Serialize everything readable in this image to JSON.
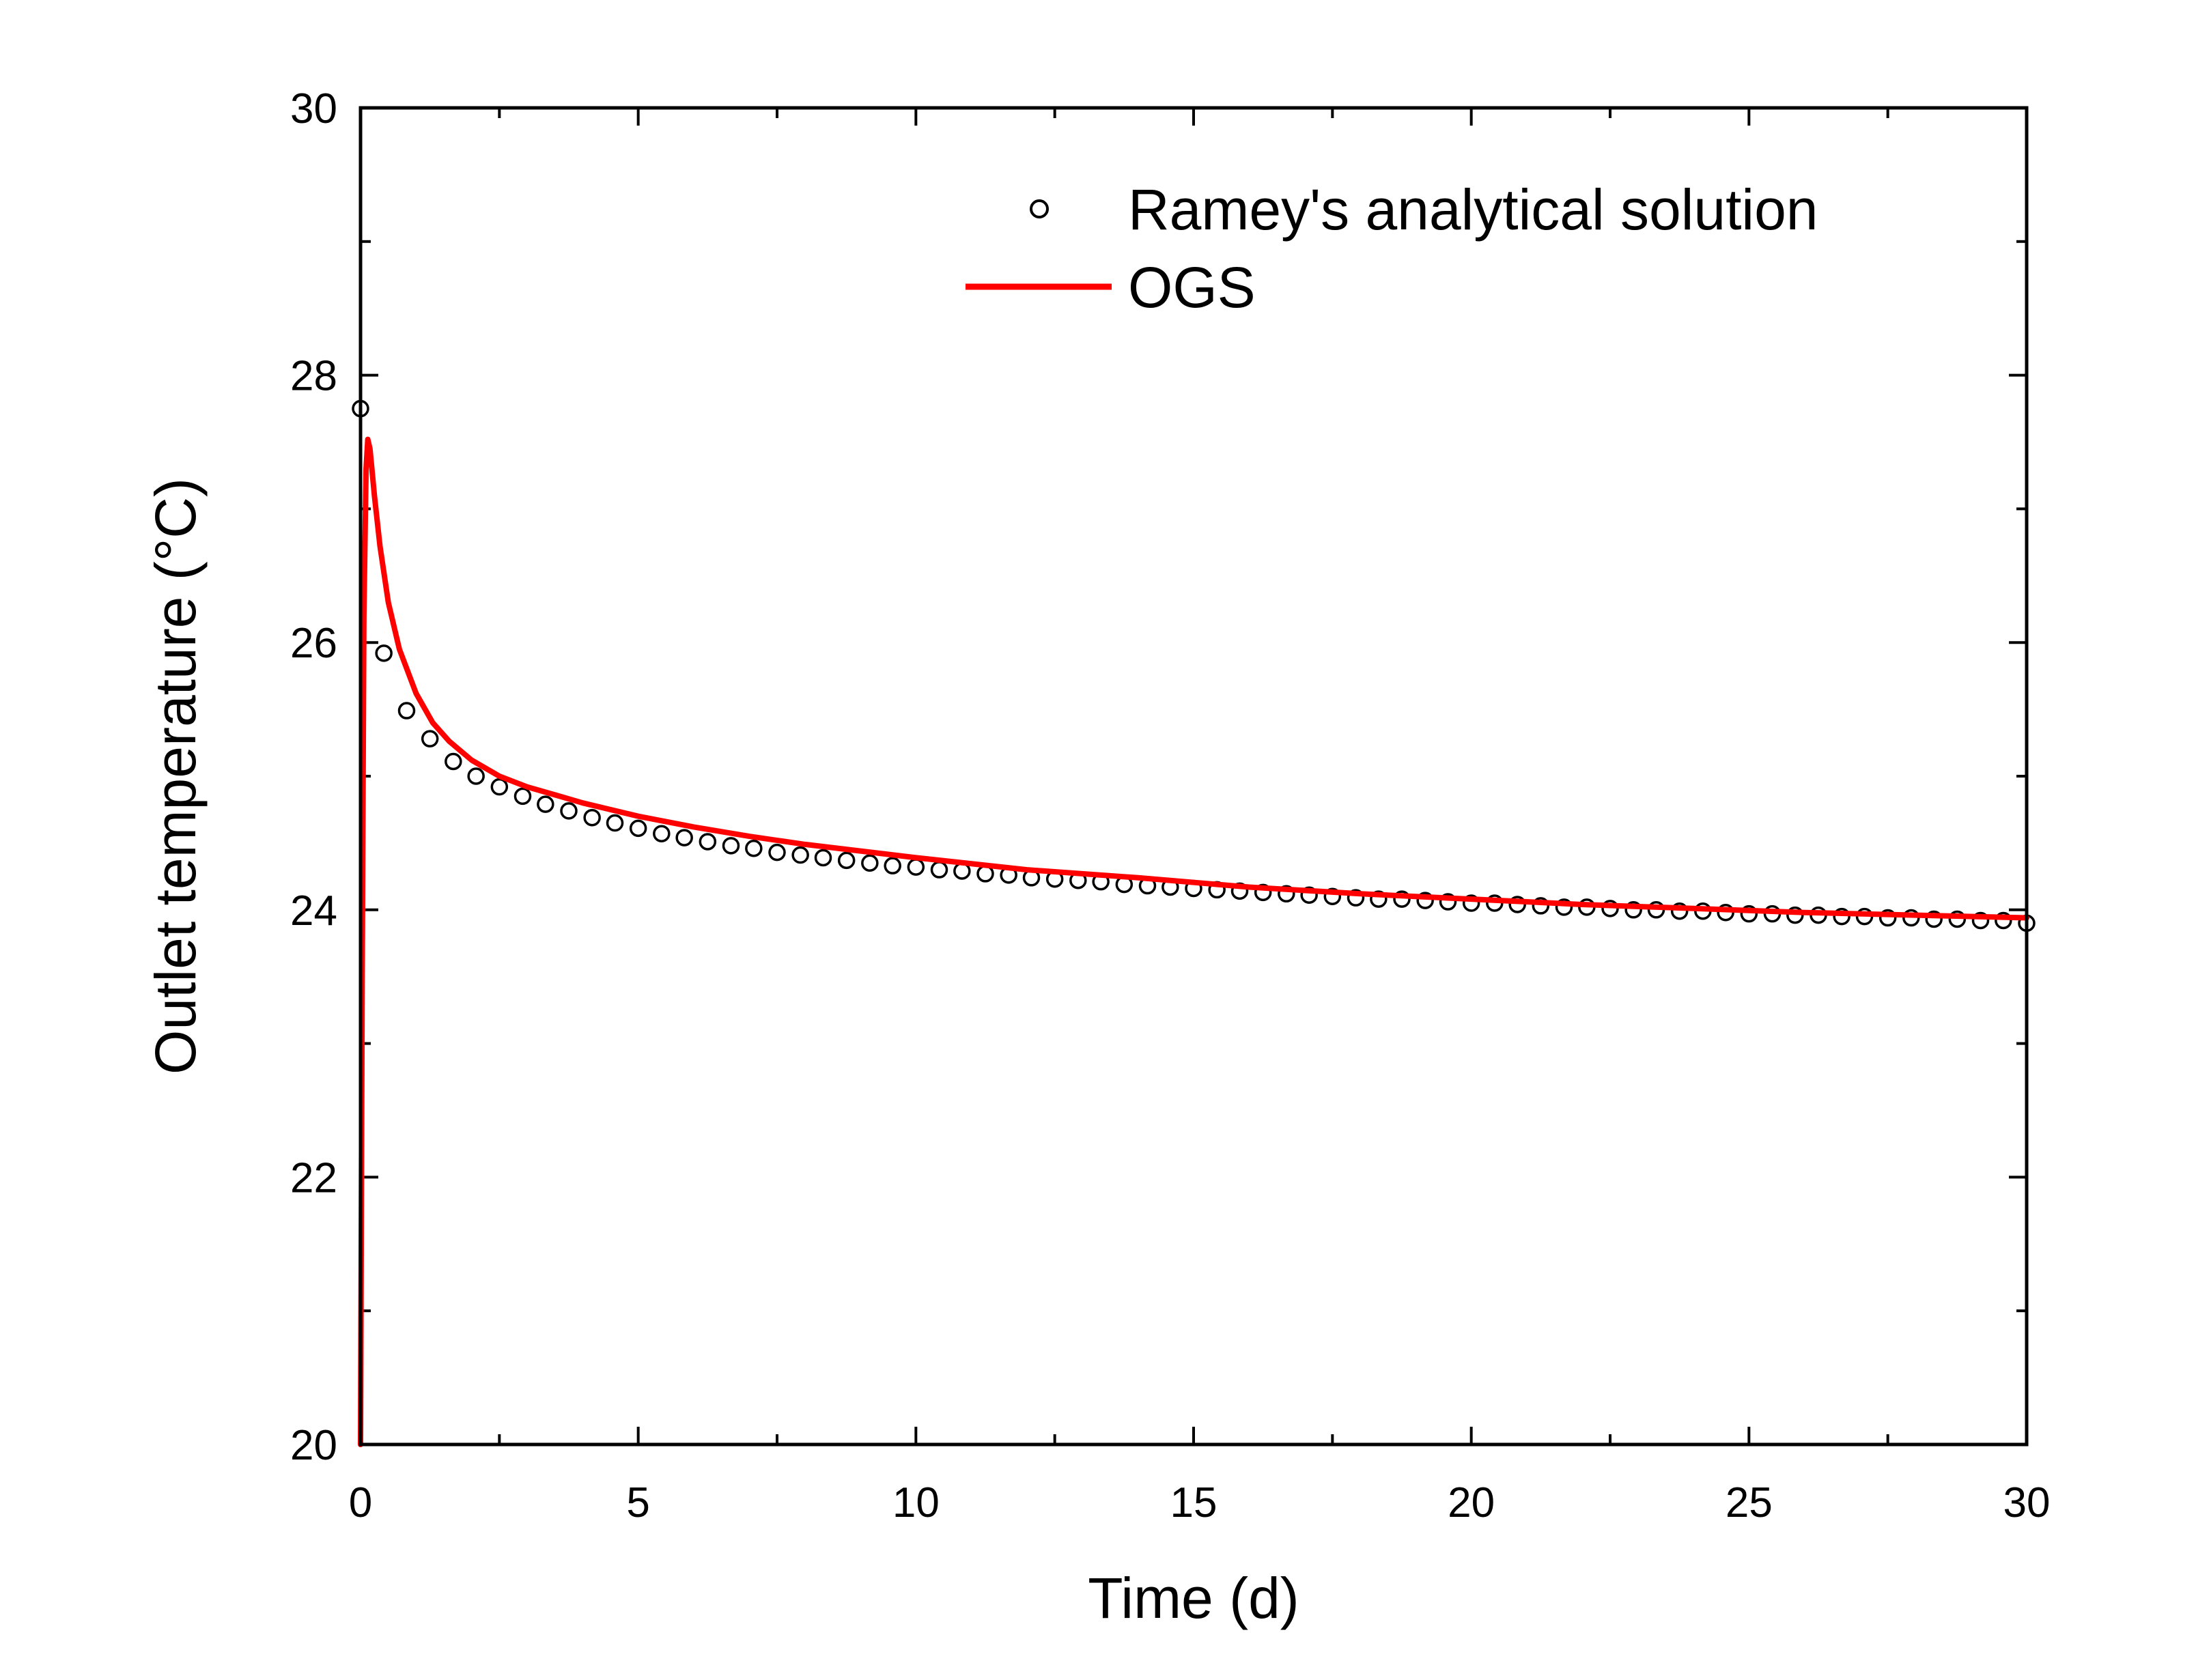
{
  "chart_data": {
    "type": "line",
    "xlabel": "Time (d)",
    "ylabel": "Outlet temperature (°C)",
    "xlim": [
      0,
      30
    ],
    "ylim": [
      20,
      30
    ],
    "x_major_ticks": [
      0,
      5,
      10,
      15,
      20,
      25,
      30
    ],
    "x_tick_labels": [
      "0",
      "5",
      "10",
      "15",
      "20",
      "25",
      "30"
    ],
    "y_major_ticks": [
      20,
      22,
      24,
      26,
      28,
      30
    ],
    "y_tick_labels": [
      "20",
      "22",
      "24",
      "26",
      "28",
      "30"
    ],
    "grid": false,
    "legend_position": "top-right",
    "series": [
      {
        "name": "Ramey's analytical solution",
        "style": "open-circle-markers",
        "color": "#000000",
        "x": [
          0.0,
          0.42,
          0.83,
          1.25,
          1.67,
          2.08,
          2.5,
          2.92,
          3.33,
          3.75,
          4.17,
          4.58,
          5.0,
          5.42,
          5.83,
          6.25,
          6.67,
          7.08,
          7.5,
          7.92,
          8.33,
          8.75,
          9.17,
          9.58,
          10.0,
          10.42,
          10.83,
          11.25,
          11.67,
          12.08,
          12.5,
          12.92,
          13.33,
          13.75,
          14.17,
          14.58,
          15.0,
          15.42,
          15.83,
          16.25,
          16.67,
          17.08,
          17.5,
          17.92,
          18.33,
          18.75,
          19.17,
          19.58,
          20.0,
          20.42,
          20.83,
          21.25,
          21.67,
          22.08,
          22.5,
          22.92,
          23.33,
          23.75,
          24.17,
          24.58,
          25.0,
          25.42,
          25.83,
          26.25,
          26.67,
          27.08,
          27.5,
          27.92,
          28.33,
          28.75,
          29.17,
          29.58,
          30.0
        ],
        "y": [
          27.75,
          25.92,
          25.49,
          25.28,
          25.11,
          25.0,
          24.92,
          24.85,
          24.79,
          24.74,
          24.69,
          24.65,
          24.61,
          24.57,
          24.54,
          24.51,
          24.48,
          24.46,
          24.43,
          24.41,
          24.39,
          24.37,
          24.35,
          24.33,
          24.32,
          24.3,
          24.29,
          24.27,
          24.26,
          24.24,
          24.23,
          24.22,
          24.21,
          24.19,
          24.18,
          24.17,
          24.16,
          24.15,
          24.14,
          24.13,
          24.12,
          24.11,
          24.1,
          24.09,
          24.08,
          24.08,
          24.07,
          24.06,
          24.05,
          24.05,
          24.04,
          24.03,
          24.02,
          24.02,
          24.01,
          24.0,
          24.0,
          23.99,
          23.99,
          23.98,
          23.97,
          23.97,
          23.96,
          23.96,
          23.95,
          23.95,
          23.94,
          23.94,
          23.93,
          23.93,
          23.92,
          23.92,
          23.9
        ]
      },
      {
        "name": "OGS",
        "style": "line",
        "color": "#ff0000",
        "x": [
          0.0,
          0.03,
          0.06,
          0.1,
          0.13,
          0.17,
          0.25,
          0.35,
          0.5,
          0.7,
          1.0,
          1.3,
          1.6,
          2.0,
          2.5,
          3.0,
          3.5,
          4.0,
          5.0,
          6.0,
          7.0,
          8.0,
          9.0,
          10.0,
          12.0,
          14.0,
          16.0,
          18.0,
          20.0,
          22.0,
          24.0,
          26.0,
          28.0,
          30.0
        ],
        "y": [
          20.0,
          23.5,
          26.2,
          27.3,
          27.52,
          27.45,
          27.1,
          26.72,
          26.3,
          25.95,
          25.62,
          25.4,
          25.26,
          25.12,
          25.0,
          24.92,
          24.86,
          24.8,
          24.7,
          24.62,
          24.55,
          24.49,
          24.44,
          24.39,
          24.3,
          24.24,
          24.17,
          24.12,
          24.08,
          24.04,
          24.01,
          23.98,
          23.96,
          23.94
        ]
      }
    ]
  }
}
